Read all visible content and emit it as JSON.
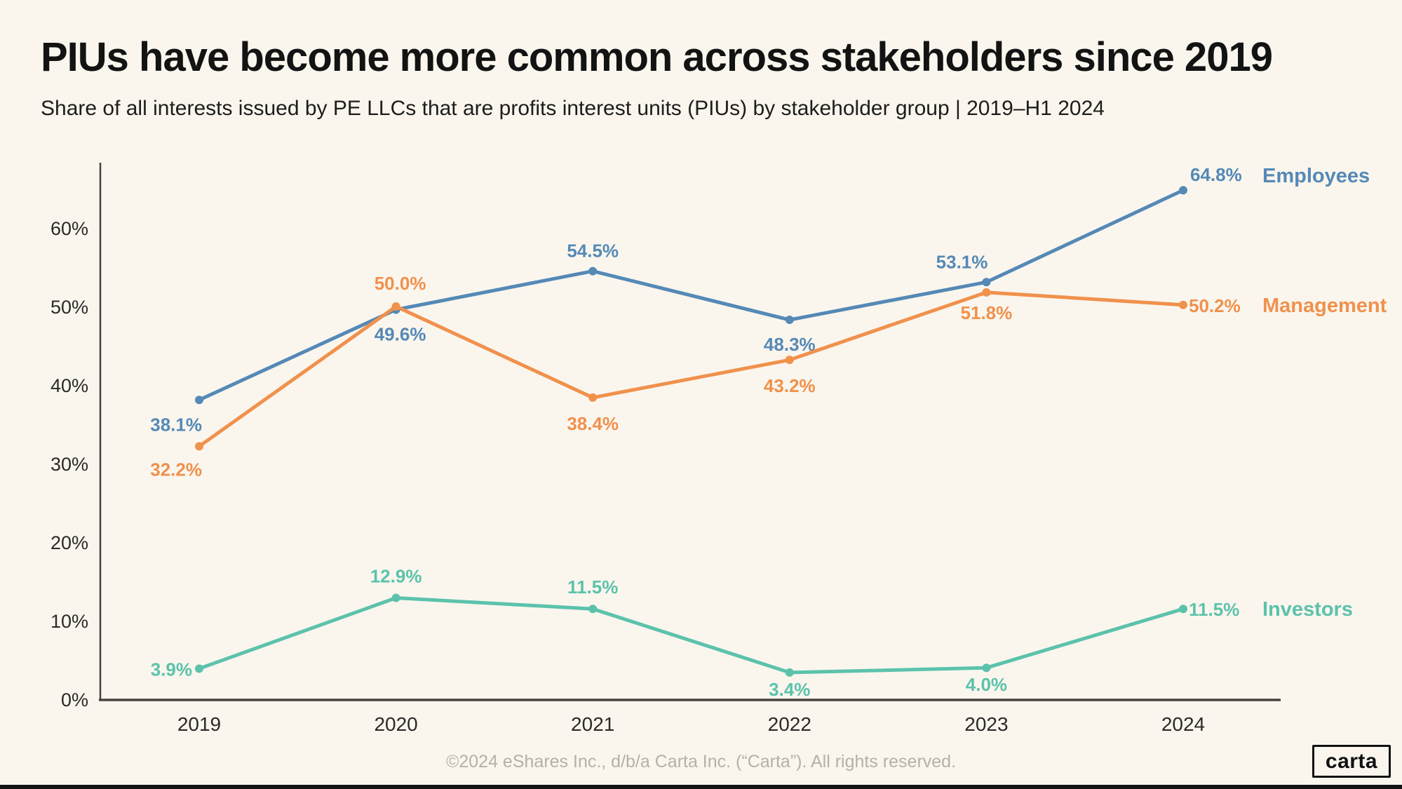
{
  "header": {
    "title": "PIUs have become more common across stakeholders since 2019",
    "subtitle": "Share of all interests issued by PE LLCs that are profits interest units (PIUs) by stakeholder group | 2019–H1 2024"
  },
  "chart_data": {
    "type": "line",
    "title": "PIUs have become more common across stakeholders since 2019",
    "categories": [
      "2019",
      "2020",
      "2021",
      "2022",
      "2023",
      "2024"
    ],
    "series": [
      {
        "name": "Employees",
        "color": "#5589b6",
        "values": [
          38.1,
          49.6,
          54.5,
          48.3,
          53.1,
          64.8
        ]
      },
      {
        "name": "Management",
        "color": "#f0914c",
        "values": [
          32.2,
          50.0,
          38.4,
          43.2,
          51.8,
          50.2
        ]
      },
      {
        "name": "Investors",
        "color": "#5cc2ab",
        "values": [
          3.9,
          12.9,
          11.5,
          3.4,
          4.0,
          11.5
        ]
      }
    ],
    "xlabel": "",
    "ylabel": "",
    "ytick_labels": [
      "0%",
      "10%",
      "20%",
      "30%",
      "40%",
      "50%",
      "60%"
    ],
    "yticks": [
      0,
      10,
      20,
      30,
      40,
      50,
      60
    ],
    "ylim": [
      0,
      68
    ],
    "grid": false,
    "point_labels_format": "one_decimal_percent",
    "legend_position": "right-of-line-ends"
  },
  "colors": {
    "background": "#faf6ee",
    "axis": "#46433e",
    "tick_text": "#2a2a28",
    "title_text": "#131313",
    "footer_text": "#b6b0a6",
    "bottom_bar": "#141414"
  },
  "footer": {
    "copyright": "©2024 eShares Inc., d/b/a Carta Inc. (“Carta”). All rights reserved.",
    "logo_text": "carta"
  }
}
